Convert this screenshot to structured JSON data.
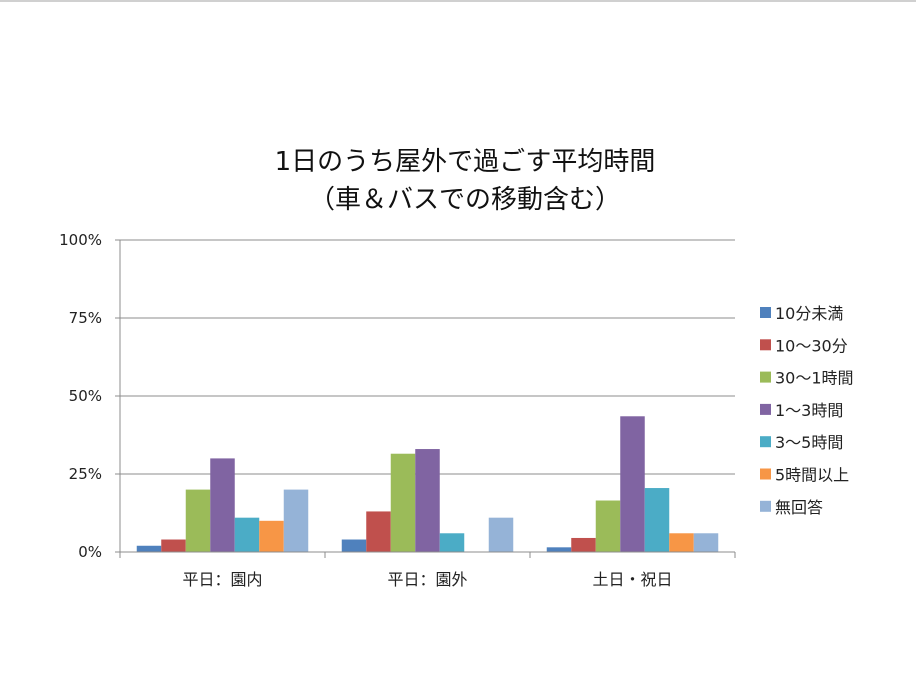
{
  "chart_data": {
    "type": "bar",
    "title_lines": [
      "1日のうち屋外で過ごす平均時間",
      "（車＆バスでの移動含む）"
    ],
    "categories": [
      "平日：園内",
      "平日：園外",
      "土日・祝日"
    ],
    "series": [
      {
        "name": "10分未満",
        "color": "#4f81bd",
        "values": [
          2,
          4,
          1.5
        ]
      },
      {
        "name": "10〜30分",
        "color": "#c0504d",
        "values": [
          4,
          13,
          4.5
        ]
      },
      {
        "name": "30〜1時間",
        "color": "#9bbb59",
        "values": [
          20,
          31.5,
          16.5
        ]
      },
      {
        "name": "1〜3時間",
        "color": "#8064a2",
        "values": [
          30,
          33,
          43.5
        ]
      },
      {
        "name": "3〜5時間",
        "color": "#4bacc6",
        "values": [
          11,
          6,
          20.5
        ]
      },
      {
        "name": "5時間以上",
        "color": "#f79646",
        "values": [
          10,
          0,
          6
        ]
      },
      {
        "name": "無回答",
        "color": "#95b3d7",
        "values": [
          20,
          11,
          6
        ]
      }
    ],
    "ylim": [
      0,
      100
    ],
    "y_ticks": [
      0,
      25,
      50,
      75,
      100
    ],
    "y_tick_labels": [
      "0%",
      "25%",
      "50%",
      "75%",
      "100%"
    ],
    "grid": true,
    "legend_position": "right"
  }
}
